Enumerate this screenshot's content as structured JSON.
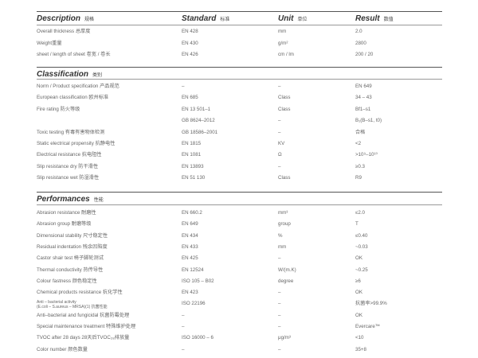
{
  "header": {
    "description": "Description",
    "description_zh": "规格",
    "standard": "Standard",
    "standard_zh": "标准",
    "unit": "Unit",
    "unit_zh": "单位",
    "result": "Result",
    "result_zh": "数值"
  },
  "general": [
    {
      "name": "Overall thickness 总厚度",
      "standard": "EN 428",
      "unit": "mm",
      "result": "2.0"
    },
    {
      "name": "Weight重量",
      "standard": "EN 430",
      "unit": "g/m²",
      "result": "2800"
    },
    {
      "name": "sheet / length of sheet 卷宽 / 卷长",
      "standard": "EN 426",
      "unit": "cm / lm",
      "result": "200 / 20"
    }
  ],
  "classification": {
    "title": "Classification",
    "title_zh": "类别",
    "rows": [
      {
        "name": "Norm / Product specification 产品规范",
        "standard": "–",
        "unit": "–",
        "result": "EN 649"
      },
      {
        "name": "European classification 欧州标准",
        "standard": "EN 685",
        "unit": "Class",
        "result": "34 – 43"
      },
      {
        "name": "Fire rating 防火等级",
        "standard": "EN 13 501–1",
        "unit": "Class",
        "result": "Bf1–s1"
      },
      {
        "name": "",
        "standard": "GB 8624–2012",
        "unit": "–",
        "result": "B₁(B–s1, t0)"
      },
      {
        "name": "Toxic testing 有毒有害物体检测",
        "standard": "GB 18586–2001",
        "unit": "–",
        "result": "合格"
      },
      {
        "name": "Static electrical propensity 抗静电性",
        "standard": "EN 1815",
        "unit": "KV",
        "result": "<2"
      },
      {
        "name": "Electrical resistance 抗电阻性",
        "standard": "EN 1081",
        "unit": "Ω",
        "result": ">10⁹–10¹⁰"
      },
      {
        "name": "Slip resistance dry 防干滑性",
        "standard": "EN 13893",
        "unit": "–",
        "result": "≥0.3"
      },
      {
        "name": "Slip resistance wet 防湿滑性",
        "standard": "EN 51 130",
        "unit": "Class",
        "result": "R9"
      }
    ]
  },
  "performances": {
    "title": "Performances",
    "title_zh": "性能",
    "rows": [
      {
        "name": "Abrasion resistance 耐磨性",
        "standard": "EN 660.2",
        "unit": "mm³",
        "result": "≤2.0"
      },
      {
        "name": "Abrasion group 耐磨等级",
        "standard": "EN 649",
        "unit": "group",
        "result": "T"
      },
      {
        "name": "Dimensional stability 尺寸稳定性",
        "standard": "EN 434",
        "unit": "%",
        "result": "≤0.40"
      },
      {
        "name": "Residual indentation 残余凹陷度",
        "standard": "EN 433",
        "unit": "mm",
        "result": "~0.03"
      },
      {
        "name": "Castor shair test 椅子脚轮测试",
        "standard": "EN 425",
        "unit": "–",
        "result": "OK"
      },
      {
        "name": "Thermal conductivity 热传导性",
        "standard": "EN 12524",
        "unit": "W/(m.K)",
        "result": "~0.25"
      },
      {
        "name": "Colour fastness 颜色稳定性",
        "standard": "ISO 105 – B02",
        "unit": "degree",
        "result": "≥6"
      },
      {
        "name": "Chemical products resistance 抗化学性",
        "standard": "EN 423",
        "unit": "–",
        "result": "OK"
      },
      {
        "name": "Anti – bacterial activity\n(E.coli – S.aureus – MRSA)(1) 抗菌性能",
        "standard": "ISO 22196",
        "unit": "–",
        "result": "抗菌率>99.9%"
      },
      {
        "name": "Anti–bacterial and fungicidal 抗菌防霉处理",
        "standard": "–",
        "unit": "–",
        "result": "OK"
      },
      {
        "name": "Special maintenance treatment 特殊维护处理",
        "standard": "–",
        "unit": "–",
        "result": "Evercare™"
      },
      {
        "name": "TVOC after 28 days 28天后TVOC₂₈排放量",
        "standard": "ISO 16000 – 6",
        "unit": "μg/m³",
        "result": "<10"
      },
      {
        "name": "Color number 颜色数量",
        "standard": "–",
        "unit": "–",
        "result": "35+8"
      }
    ]
  }
}
